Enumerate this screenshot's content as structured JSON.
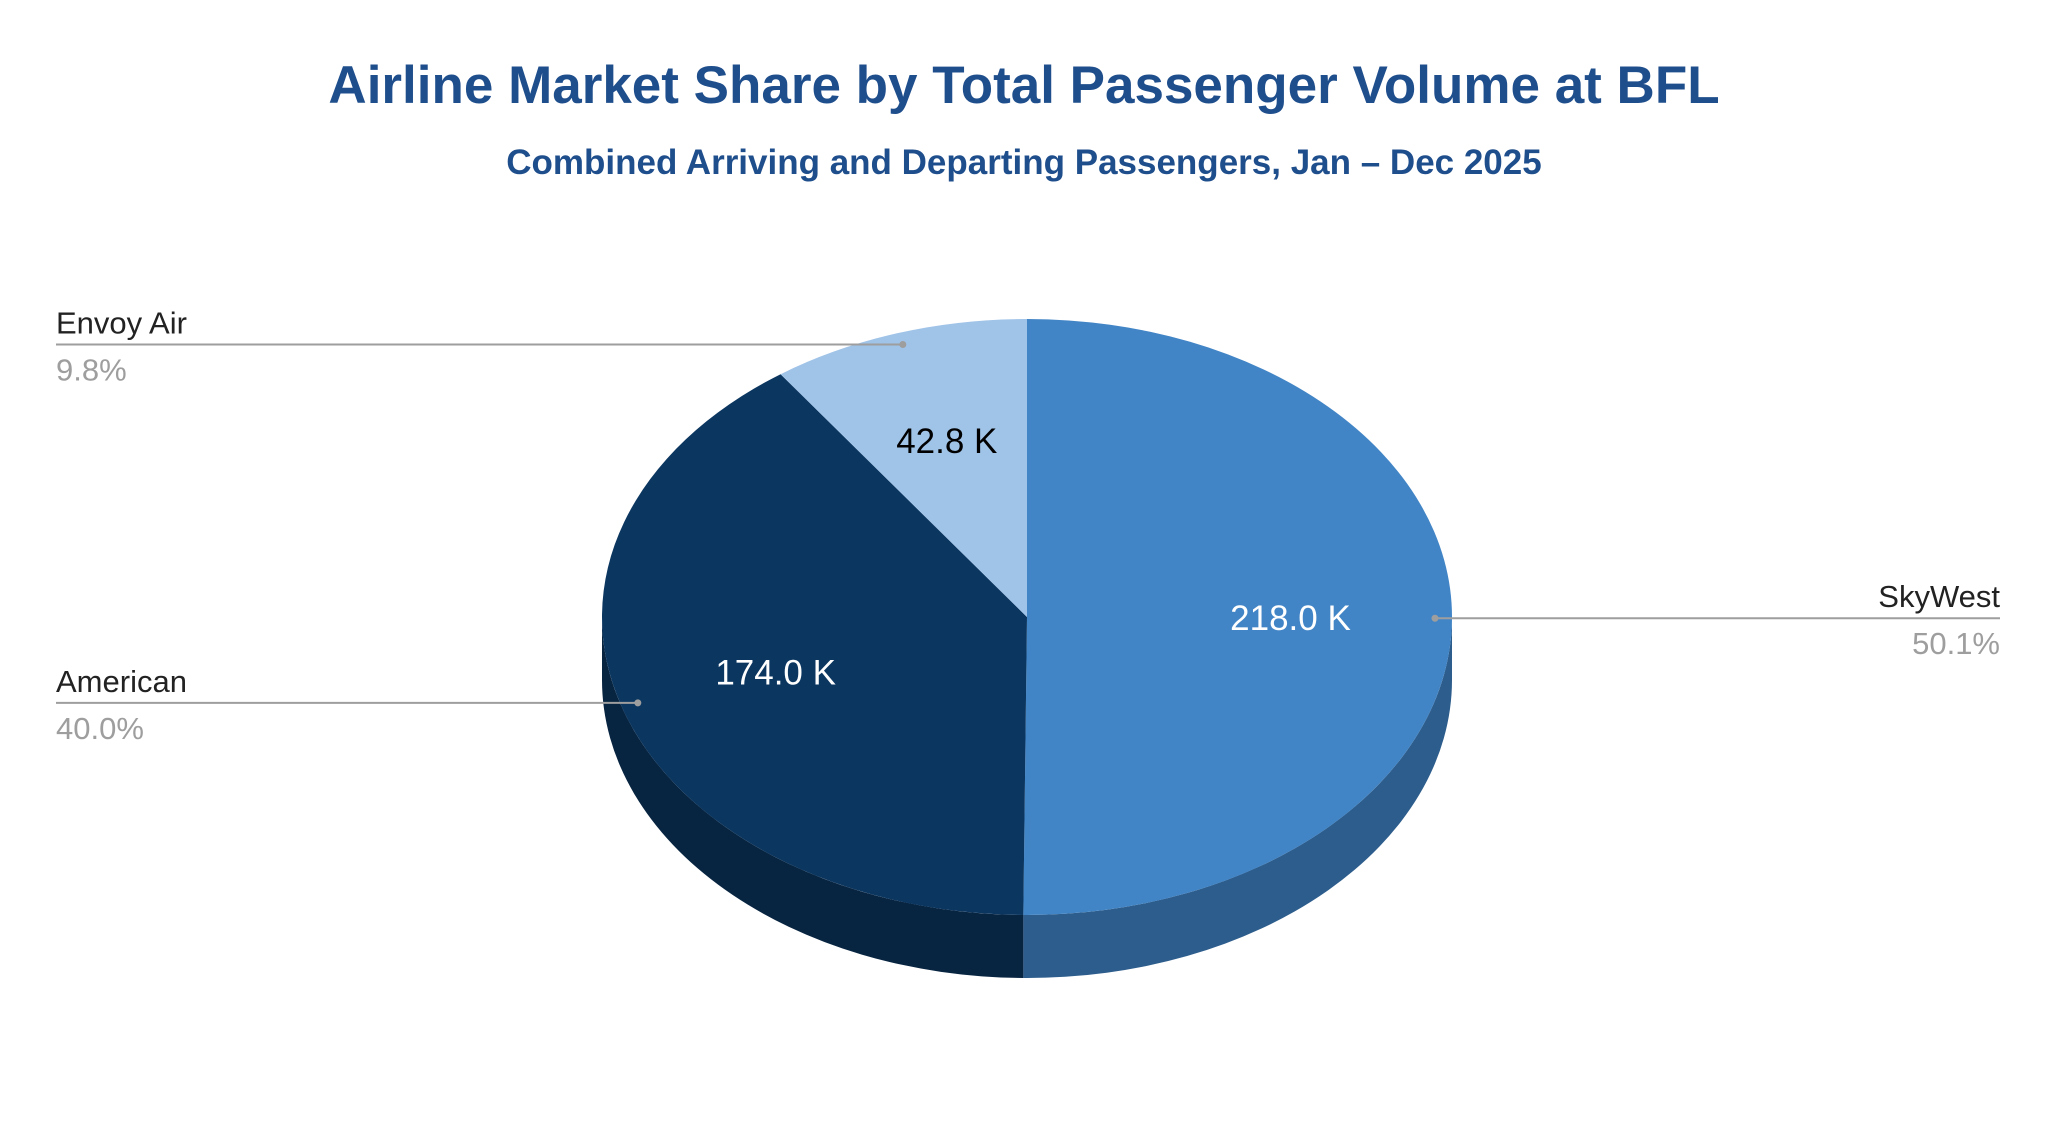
{
  "chart_data": {
    "type": "pie",
    "title": "Airline Market Share by Total Passenger Volume at BFL",
    "subtitle": "Combined Arriving and Departing Passengers, Jan – Dec 2025",
    "slices": [
      {
        "name": "SkyWest",
        "value": 218.0,
        "value_label": "218.0 K",
        "percent_label": "50.1%",
        "color": "#4285c6",
        "side_color": "#2d5d8c",
        "value_label_color": "#ffffff"
      },
      {
        "name": "American",
        "value": 174.0,
        "value_label": "174.0 K",
        "percent_label": "40.0%",
        "color": "#0b3660",
        "side_color": "#072441",
        "value_label_color": "#ffffff"
      },
      {
        "name": "Envoy Air",
        "value": 42.8,
        "value_label": "42.8 K",
        "percent_label": "9.8%",
        "color": "#a0c3e8",
        "side_color": "#7c9ab8",
        "value_label_color": "#000000"
      }
    ],
    "start": "12 o'clock",
    "direction": "clockwise",
    "style": "3d",
    "legend": "none"
  }
}
